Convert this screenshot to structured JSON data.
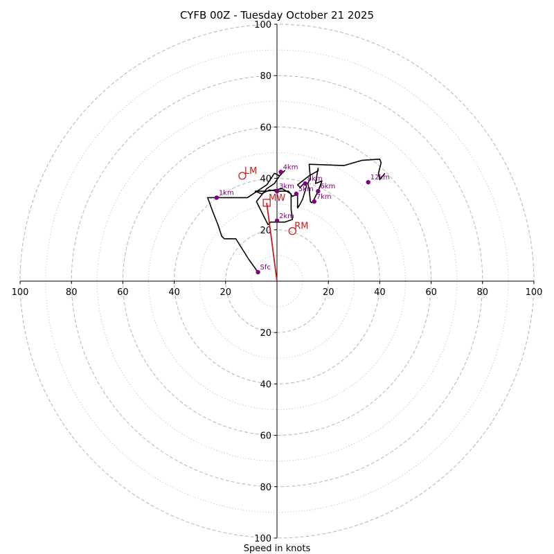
{
  "chart_data": {
    "type": "hodograph",
    "title": "CYFB 00Z - Tuesday October 21 2025",
    "xlabel": "Speed in knots",
    "ylabel": "",
    "xlim": [
      -100,
      100
    ],
    "ylim": [
      -100,
      100
    ],
    "rings_major": [
      20,
      40,
      60,
      80,
      100
    ],
    "rings_minor": [
      10,
      30,
      50,
      70,
      90
    ],
    "ticks": {
      "x_left": [
        "100",
        "80",
        "60",
        "40",
        "20"
      ],
      "x_right": [
        "20",
        "40",
        "60",
        "80",
        "100"
      ],
      "y_up": [
        "20",
        "40",
        "60",
        "80",
        "100"
      ],
      "y_down": [
        "20",
        "40",
        "60",
        "80",
        "100"
      ]
    },
    "trace": {
      "color": "#000000",
      "points": [
        [
          -7.4,
          3.5
        ],
        [
          -11,
          8.5
        ],
        [
          -16,
          16.5
        ],
        [
          -19,
          16.5
        ],
        [
          -20.5,
          16.5
        ],
        [
          -21.5,
          17.5
        ],
        [
          -23,
          22
        ],
        [
          -25,
          27
        ],
        [
          -27,
          32.5
        ],
        [
          -23.5,
          32.5
        ],
        [
          -11.5,
          32.5
        ],
        [
          -7,
          35.5
        ],
        [
          -4,
          37.5
        ],
        [
          -1,
          42
        ],
        [
          1,
          41
        ],
        [
          3,
          43
        ],
        [
          1,
          41
        ],
        [
          -1,
          38
        ],
        [
          -4,
          36
        ],
        [
          -8,
          31
        ],
        [
          -3.5,
          22
        ],
        [
          -2.5,
          23
        ],
        [
          0,
          23
        ],
        [
          3,
          23
        ],
        [
          6,
          24
        ],
        [
          5.5,
          28
        ],
        [
          5.5,
          33
        ],
        [
          5.5,
          34
        ],
        [
          2,
          36
        ],
        [
          -4,
          35
        ],
        [
          -8.5,
          35
        ],
        [
          -6,
          34
        ],
        [
          -3,
          35.5
        ],
        [
          0,
          35
        ],
        [
          1.5,
          35
        ],
        [
          4.5,
          35
        ],
        [
          6,
          33
        ],
        [
          8,
          34
        ],
        [
          8,
          28.5
        ],
        [
          9,
          30
        ],
        [
          10,
          32
        ],
        [
          11.5,
          37
        ],
        [
          10.5,
          38
        ],
        [
          9,
          36.5
        ],
        [
          8,
          37.5
        ],
        [
          12.5,
          41
        ],
        [
          16,
          43
        ],
        [
          16,
          44
        ],
        [
          15,
          38
        ],
        [
          17.5,
          39
        ],
        [
          16,
          35
        ],
        [
          15,
          33
        ],
        [
          14,
          31
        ],
        [
          13.5,
          30.5
        ],
        [
          13,
          31
        ],
        [
          12.5,
          36
        ],
        [
          12,
          38
        ],
        [
          13,
          40
        ],
        [
          12.5,
          45.5
        ],
        [
          26,
          45
        ],
        [
          33,
          47
        ],
        [
          40,
          47.5
        ],
        [
          40.5,
          46
        ],
        [
          39.5,
          42
        ],
        [
          40,
          39.5
        ],
        [
          42,
          42
        ]
      ]
    },
    "height_labels": [
      {
        "label": "Sfc",
        "u": -7.4,
        "v": 3.5
      },
      {
        "label": "1km",
        "u": -23.5,
        "v": 32.5
      },
      {
        "label": "2km",
        "u": 0,
        "v": 23.5
      },
      {
        "label": "3km",
        "u": 0,
        "v": 35
      },
      {
        "label": "4km",
        "u": 1.5,
        "v": 42.5
      },
      {
        "label": "5km",
        "u": 7.5,
        "v": 34
      },
      {
        "label": "6km",
        "u": 16,
        "v": 35
      },
      {
        "label": "7km",
        "u": 14.5,
        "v": 31
      },
      {
        "label": "8km",
        "u": 11,
        "v": 38
      },
      {
        "label": "12km",
        "u": 35.5,
        "v": 38.5
      }
    ],
    "motion_markers": [
      {
        "label": "LM",
        "u": -13.5,
        "v": 41,
        "shape": "circle"
      },
      {
        "label": "RM",
        "u": 6,
        "v": 19.5,
        "shape": "circle"
      },
      {
        "label": "MW",
        "u": -4,
        "v": 30.5,
        "shape": "square"
      }
    ],
    "storm_motion_vector": {
      "from": [
        0,
        0
      ],
      "to": [
        -4,
        30.5
      ],
      "color": "#cc1a1a"
    },
    "colors": {
      "trace": "#000000",
      "height_points": "#800080",
      "markers": "#cc1a1a",
      "rings": "#bbbbbb"
    }
  }
}
